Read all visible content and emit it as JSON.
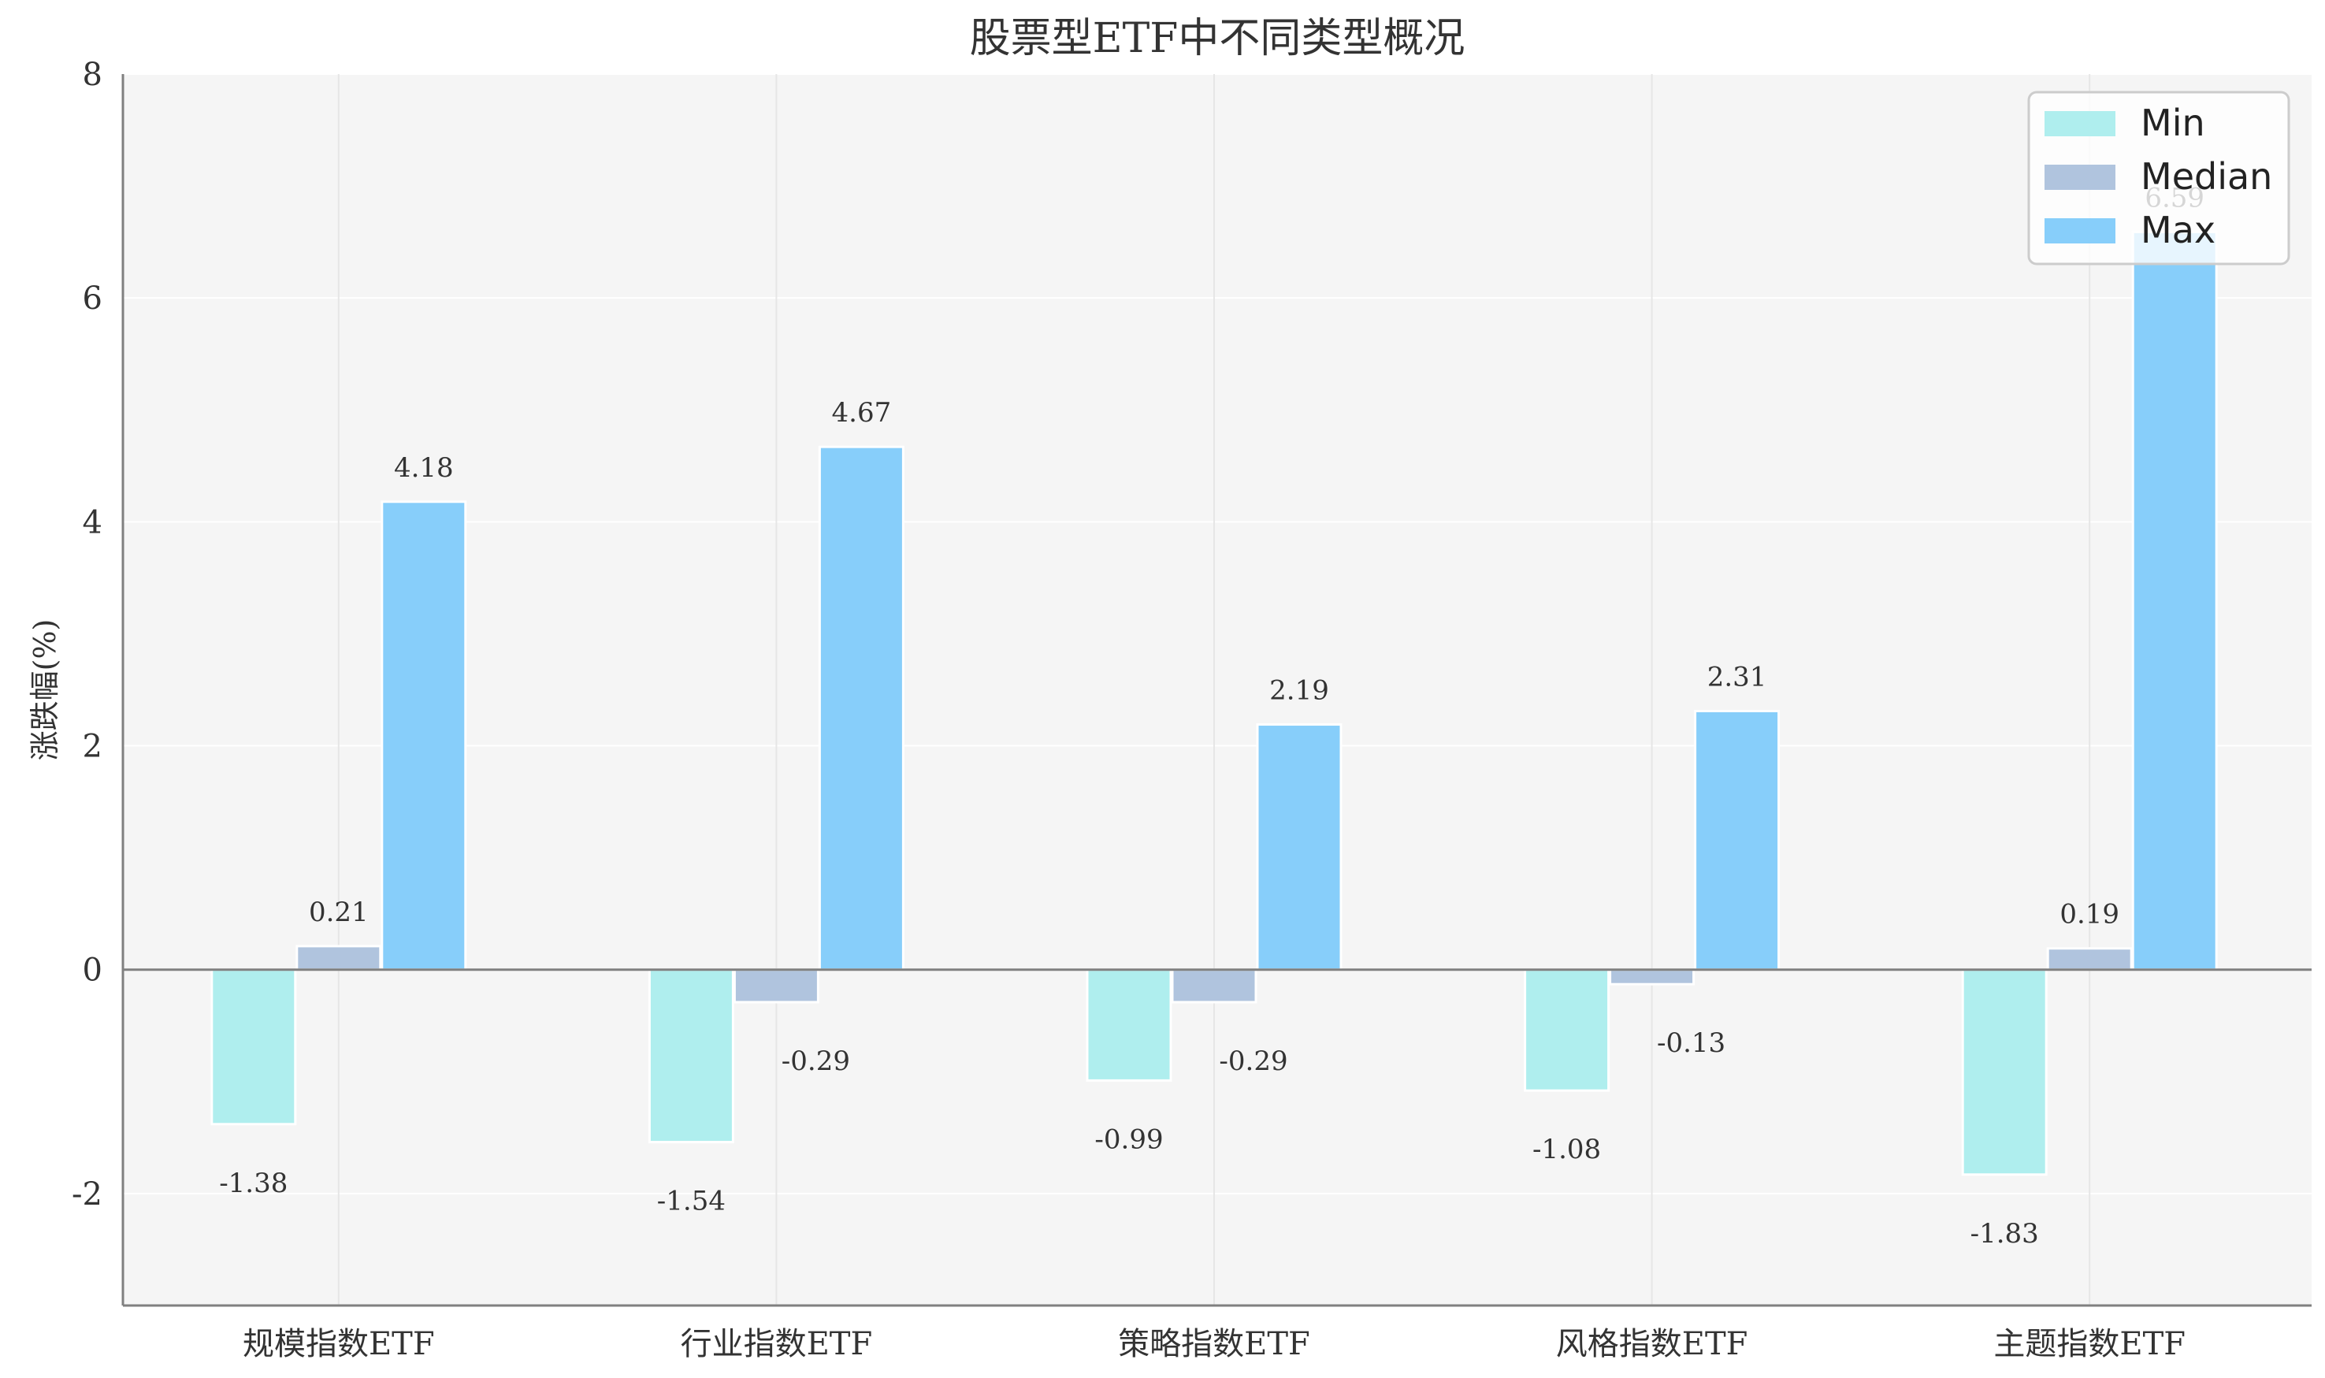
{
  "chart_data": {
    "type": "bar",
    "title": "股票型ETF中不同类型概况",
    "ylabel": "涨跌幅(%)",
    "xlabel": "",
    "categories": [
      "规模指数ETF",
      "行业指数ETF",
      "策略指数ETF",
      "风格指数ETF",
      "主题指数ETF"
    ],
    "series": [
      {
        "name": "Min",
        "values": [
          -1.38,
          -1.54,
          -0.99,
          -1.08,
          -1.83
        ],
        "color": "#AFEEEE"
      },
      {
        "name": "Median",
        "values": [
          0.21,
          -0.29,
          -0.29,
          -0.13,
          0.19
        ],
        "color": "#B0C4DE"
      },
      {
        "name": "Max",
        "values": [
          4.18,
          4.67,
          2.19,
          2.31,
          6.59
        ],
        "color": "#87CEFA"
      }
    ],
    "ylim": [
      -3,
      8
    ],
    "yticks": [
      -2,
      0,
      2,
      4,
      6,
      8
    ],
    "grid": true,
    "legend_position": "top-right",
    "background": "#F5F5F5"
  }
}
